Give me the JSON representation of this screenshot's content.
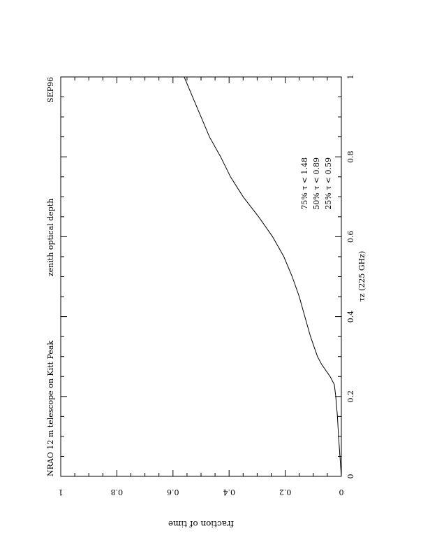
{
  "chart_data": {
    "type": "line",
    "orientation": "rotated-90-clockwise",
    "title_left": "NRAO 12 m telescope on Kitt Peak",
    "title_center": "zenith optical depth",
    "title_right": "SEP96",
    "xlabel": "τz (225 GHz)",
    "ylabel": "fraction of time",
    "xlim": [
      0,
      1
    ],
    "ylim": [
      0,
      1
    ],
    "xticks": [
      0,
      0.2,
      0.4,
      0.6,
      0.8,
      1
    ],
    "xtick_labels": [
      "0",
      "0.2",
      "0.4",
      "0.6",
      "0.8",
      "1"
    ],
    "yticks": [
      0,
      0.2,
      0.4,
      0.6,
      0.8,
      1
    ],
    "ytick_labels": [
      "0",
      "0.2",
      "0.4",
      "0.6",
      "0.8",
      "1"
    ],
    "annotations": [
      "75% τ < 1.48",
      "50% τ < 0.89",
      "25% τ < 0.59"
    ],
    "series": [
      {
        "x": [
          0,
          0.05,
          0.1,
          0.15,
          0.2,
          0.23,
          0.25,
          0.28,
          0.3,
          0.33,
          0.35,
          0.4,
          0.45,
          0.5,
          0.55,
          0.6,
          0.65,
          0.7,
          0.75,
          0.8,
          0.85,
          0.9,
          0.95,
          1.0
        ],
        "y": [
          0,
          0.005,
          0.01,
          0.014,
          0.02,
          0.025,
          0.04,
          0.07,
          0.085,
          0.1,
          0.11,
          0.13,
          0.15,
          0.175,
          0.205,
          0.245,
          0.295,
          0.35,
          0.395,
          0.43,
          0.47,
          0.5,
          0.53,
          0.56
        ]
      }
    ]
  }
}
